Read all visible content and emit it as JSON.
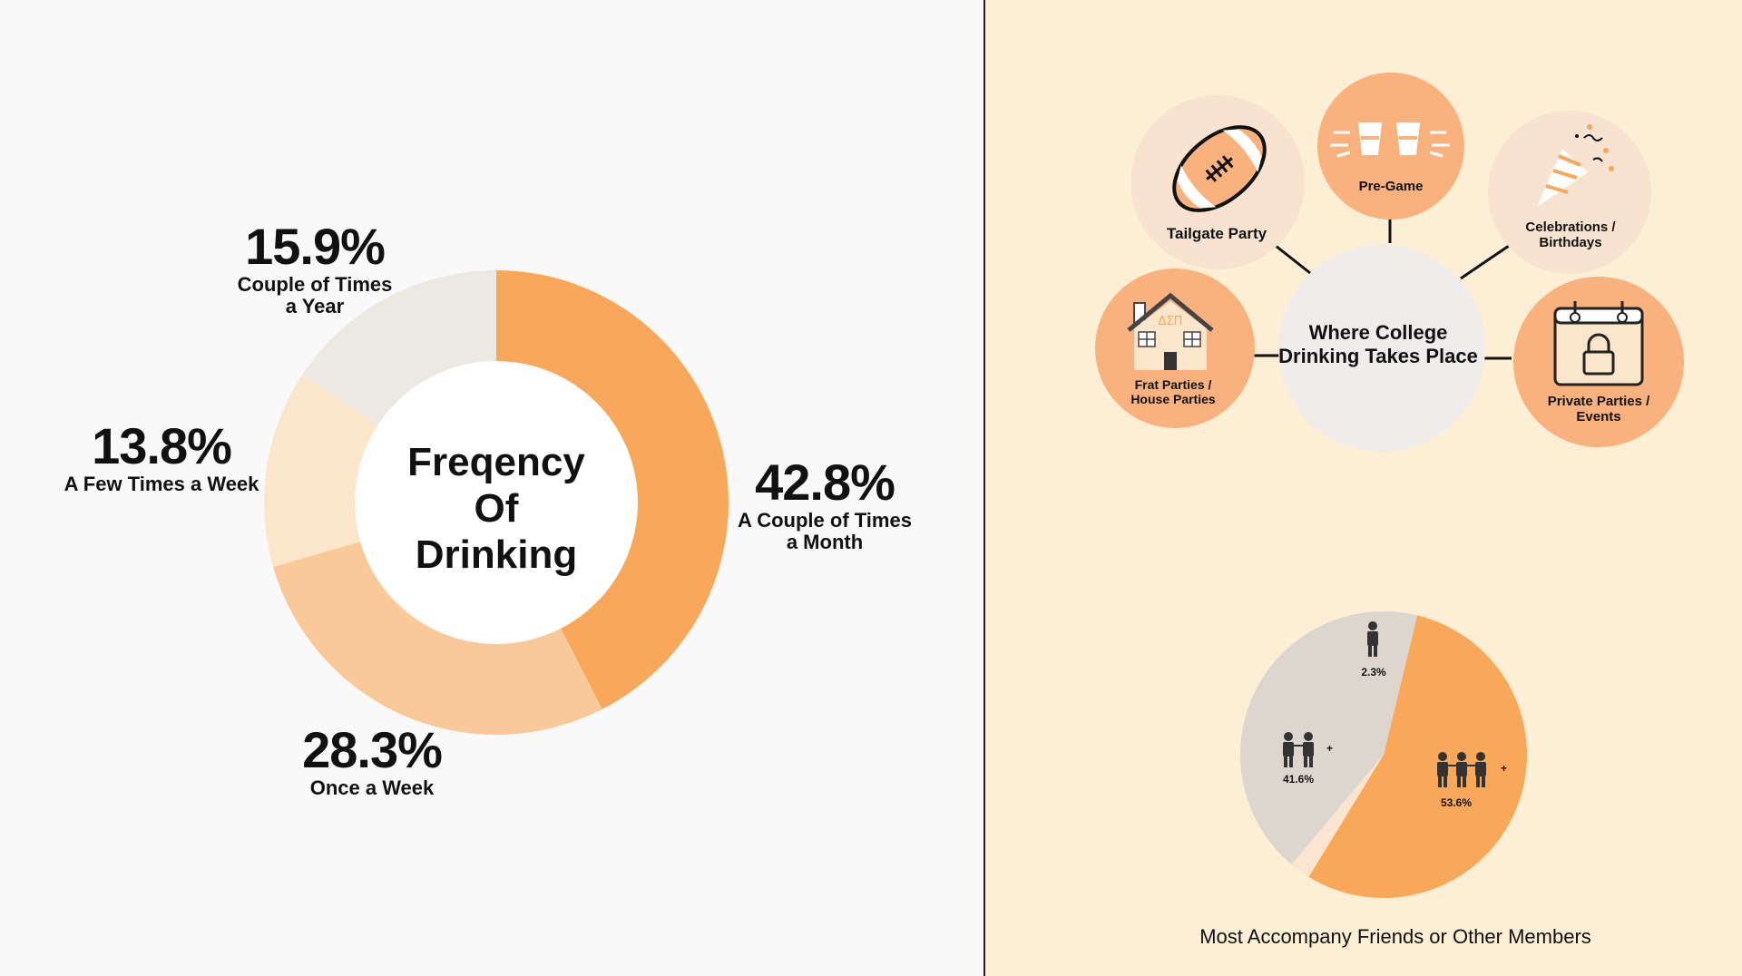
{
  "colors": {
    "left_bg": "#f9f9f9",
    "right_bg": "#fdefd5",
    "orange": "#f9a758",
    "light_orange": "#fac999",
    "pale_peach": "#fce6cb",
    "light_gray": "#ece8e2",
    "bubble_orange": "#f9b17e",
    "bubble_pale": "#f8e3d1",
    "hub_gray": "#efeceb",
    "pie_gray": "#dcd6cf",
    "pie_pale": "#fbe4d0"
  },
  "chart_data": [
    {
      "type": "pie",
      "title": "Freqency\nOf\nDrinking",
      "categories": [
        "A Couple of Times\na Month",
        "Once a Week",
        "A Few Times a Week",
        "Couple of Times\na Year"
      ],
      "values": [
        42.8,
        28.3,
        13.8,
        15.9
      ],
      "value_labels": [
        "42.8%",
        "28.3%",
        "13.8%",
        "15.9%"
      ]
    },
    {
      "type": "pie",
      "title": "Most Accompany Friends or Other Members",
      "categories": [
        "three-people",
        "alone",
        "two-people"
      ],
      "values": [
        53.6,
        2.3,
        41.6
      ],
      "value_labels": [
        "53.6%",
        "2.3%",
        "41.6%"
      ],
      "plus": "+"
    }
  ],
  "places": {
    "hub": "Where College\nDrinking Takes Place",
    "items": [
      {
        "label": "Tailgate Party",
        "icon": "football-icon"
      },
      {
        "label": "Pre-Game",
        "icon": "shot-glasses-icon"
      },
      {
        "label": "Celebrations /\nBirthdays",
        "icon": "party-popper-icon"
      },
      {
        "label": "Frat Parties /\nHouse Parties",
        "icon": "frat-house-icon"
      },
      {
        "label": "Private Parties /\nEvents",
        "icon": "calendar-lock-icon"
      }
    ],
    "house_letters": "ΔΣΠ"
  }
}
